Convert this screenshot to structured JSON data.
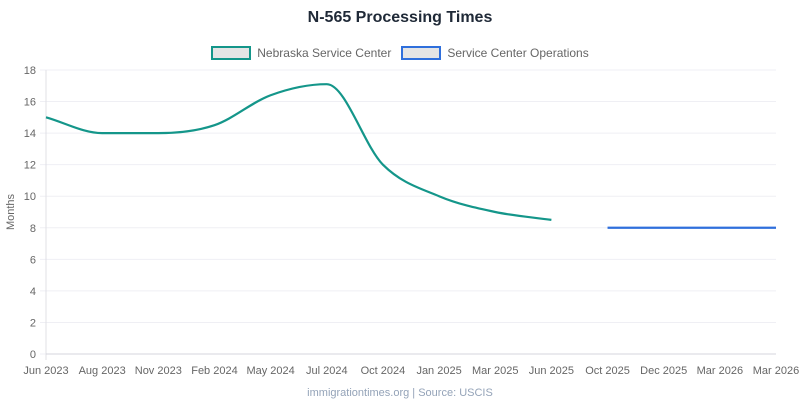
{
  "chart_data": {
    "type": "line",
    "title": "N-565 Processing Times",
    "xlabel": "",
    "ylabel": "Months",
    "ylim": [
      0,
      18
    ],
    "yticks": [
      "0",
      "2",
      "4",
      "6",
      "8",
      "10",
      "12",
      "14",
      "16",
      "18"
    ],
    "grid": true,
    "legend_position": "top-center",
    "categories": [
      "Jun 2023",
      "Aug 2023",
      "Nov 2023",
      "Feb 2024",
      "May 2024",
      "Jul 2024",
      "Oct 2024",
      "Jan 2025",
      "Mar 2025",
      "Jun 2025",
      "Oct 2025",
      "Dec 2025",
      "Mar 2026",
      "Mar 2026"
    ],
    "series": [
      {
        "name": "Nebraska Service Center",
        "color": "#14968a",
        "values": [
          15.0,
          14.0,
          14.0,
          14.5,
          16.4,
          17.1,
          12.0,
          10.0,
          9.0,
          8.5,
          null,
          null,
          null,
          null
        ]
      },
      {
        "name": "Service Center Operations",
        "color": "#2f6fdc",
        "values": [
          null,
          null,
          null,
          null,
          null,
          null,
          null,
          null,
          null,
          null,
          8.0,
          8.0,
          8.0,
          8.0
        ]
      }
    ]
  },
  "footer": "immigrationtimes.org | Source: USCIS"
}
